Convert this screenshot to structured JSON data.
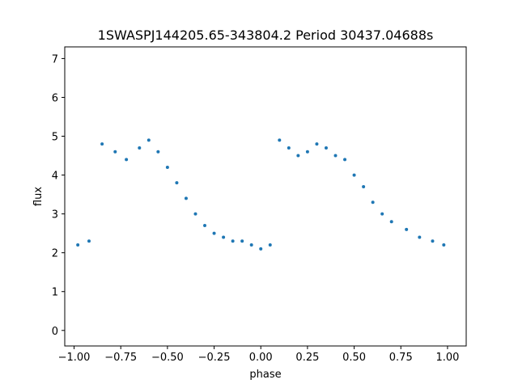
{
  "chart_data": {
    "type": "scatter",
    "title": "1SWASPJ144205.65-343804.2 Period 30437.04688s",
    "xlabel": "phase",
    "ylabel": "flux",
    "xlim": [
      -1.05,
      1.1
    ],
    "ylim": [
      -0.4,
      7.3
    ],
    "xticks": [
      -1.0,
      -0.75,
      -0.5,
      -0.25,
      0.0,
      0.25,
      0.5,
      0.75,
      1.0
    ],
    "xtick_labels": [
      "−1.00",
      "−0.75",
      "−0.50",
      "−0.25",
      "0.00",
      "0.25",
      "0.50",
      "0.75",
      "1.00"
    ],
    "yticks": [
      0,
      1,
      2,
      3,
      4,
      5,
      6,
      7
    ],
    "ytick_labels": [
      "0",
      "1",
      "2",
      "3",
      "4",
      "5",
      "6",
      "7"
    ],
    "marker_color": "#1f77b4",
    "grid": false,
    "legend": "none",
    "x": [
      -0.98,
      -0.92,
      -0.85,
      -0.78,
      -0.72,
      -0.65,
      -0.6,
      -0.55,
      -0.5,
      -0.45,
      -0.4,
      -0.35,
      -0.3,
      -0.25,
      -0.2,
      -0.15,
      -0.1,
      -0.05,
      0.0,
      0.05,
      0.1,
      0.15,
      0.2,
      0.25,
      0.3,
      0.35,
      0.4,
      0.45,
      0.5,
      0.55,
      0.6,
      0.65,
      0.7,
      0.78,
      0.85,
      0.92,
      0.98
    ],
    "y": [
      2.2,
      2.3,
      4.8,
      4.6,
      4.4,
      4.7,
      4.9,
      4.6,
      4.2,
      3.8,
      3.4,
      3.0,
      2.7,
      2.5,
      2.4,
      2.3,
      2.3,
      2.2,
      2.1,
      2.2,
      4.9,
      4.7,
      4.5,
      4.6,
      4.8,
      4.7,
      4.5,
      4.4,
      4.0,
      3.7,
      3.3,
      3.0,
      2.8,
      2.6,
      2.4,
      2.3,
      2.2
    ]
  }
}
